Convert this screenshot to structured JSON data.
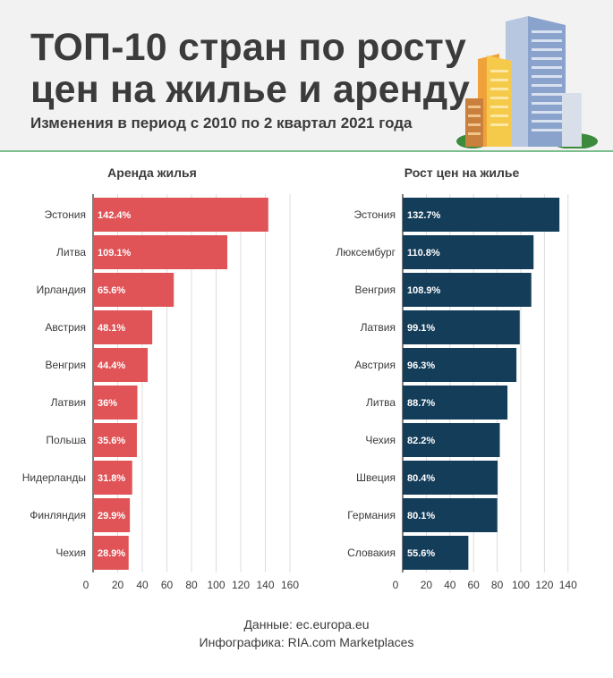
{
  "header": {
    "title_line1": "ТОП-10 стран по росту",
    "title_line2": "цен на жилье и аренду",
    "subtitle": "Изменения в период с 2010 по 2 квартал 2021 года"
  },
  "footer": {
    "source": "Данные: ec.europa.eu",
    "credit": "Инфографика: RIA.com Marketplaces"
  },
  "colors": {
    "rent": "#e05356",
    "price": "#143d5a",
    "grid": "#dcdcdc",
    "text": "#3b3b3b",
    "label": "#ffffff"
  },
  "chart_data": [
    {
      "type": "bar",
      "orientation": "horizontal",
      "title": "Аренда жилья",
      "categories": [
        "Эстония",
        "Литва",
        "Ирландия",
        "Австрия",
        "Венгрия",
        "Латвия",
        "Польша",
        "Нидерланды",
        "Финляндия",
        "Чехия"
      ],
      "values": [
        142.4,
        109.1,
        65.6,
        48.1,
        44.4,
        36,
        35.6,
        31.8,
        29.9,
        28.9
      ],
      "labels": [
        "142.4%",
        "109.1%",
        "65.6%",
        "48.1%",
        "44.4%",
        "36%",
        "35.6%",
        "31.8%",
        "29.9%",
        "28.9%"
      ],
      "xlim": [
        0,
        160
      ],
      "ticks": [
        0,
        20,
        40,
        60,
        80,
        100,
        120,
        140,
        160
      ],
      "grid": true
    },
    {
      "type": "bar",
      "orientation": "horizontal",
      "title": "Рост цен на жилье",
      "categories": [
        "Эстония",
        "Люксембург",
        "Венгрия",
        "Латвия",
        "Австрия",
        "Литва",
        "Чехия",
        "Швеция",
        "Германия",
        "Словакия"
      ],
      "values": [
        132.7,
        110.8,
        108.9,
        99.1,
        96.3,
        88.7,
        82.2,
        80.4,
        80.1,
        55.6
      ],
      "labels": [
        "132.7%",
        "110.8%",
        "108.9%",
        "99.1%",
        "96.3%",
        "88.7%",
        "82.2%",
        "80.4%",
        "80.1%",
        "55.6%"
      ],
      "xlim": [
        0,
        140
      ],
      "ticks": [
        0,
        20,
        40,
        60,
        80,
        100,
        120,
        140
      ],
      "grid": true
    }
  ]
}
